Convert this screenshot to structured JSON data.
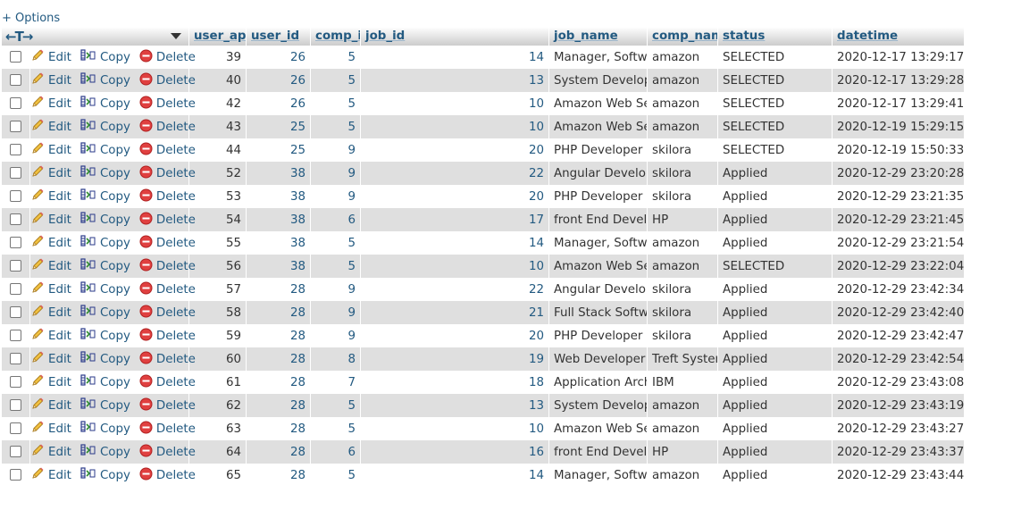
{
  "options_label": "+ Options",
  "header": {
    "nav_arrows": "←T→",
    "columns": [
      "user_applied_job_id",
      "user_id",
      "comp_id",
      "job_id",
      "job_name",
      "comp_name",
      "status",
      "datetime"
    ]
  },
  "actions": {
    "edit": "Edit",
    "copy": "Copy",
    "delete": "Delete"
  },
  "rows": [
    [
      "39",
      "26",
      "5",
      "14",
      "Manager, Software Development",
      "amazon",
      "SELECTED",
      "2020-12-17 13:29:17"
    ],
    [
      "40",
      "26",
      "5",
      "13",
      "System Development Engineer",
      "amazon",
      "SELECTED",
      "2020-12-17 13:29:28"
    ],
    [
      "42",
      "26",
      "5",
      "10",
      "Amazon Web Services (AWS)",
      "amazon",
      "SELECTED",
      "2020-12-17 13:29:41"
    ],
    [
      "43",
      "25",
      "5",
      "10",
      "Amazon Web Services (AWS)",
      "amazon",
      "SELECTED",
      "2020-12-19 15:29:15"
    ],
    [
      "44",
      "25",
      "9",
      "20",
      "PHP Developer - Web Applications",
      "skilora",
      "SELECTED",
      "2020-12-19 15:50:33"
    ],
    [
      "52",
      "38",
      "9",
      "22",
      "Angular Developer",
      "skilora",
      "Applied",
      "2020-12-29 23:20:28"
    ],
    [
      "53",
      "38",
      "9",
      "20",
      "PHP Developer - Web Applications",
      "skilora",
      "Applied",
      "2020-12-29 23:21:35"
    ],
    [
      "54",
      "38",
      "6",
      "17",
      "front End Developer ( React JS )",
      "HP",
      "Applied",
      "2020-12-29 23:21:45"
    ],
    [
      "55",
      "38",
      "5",
      "14",
      "Manager, Software Development",
      "amazon",
      "Applied",
      "2020-12-29 23:21:54"
    ],
    [
      "56",
      "38",
      "5",
      "10",
      "Amazon Web Services (AWS)",
      "amazon",
      "SELECTED",
      "2020-12-29 23:22:04"
    ],
    [
      "57",
      "28",
      "9",
      "22",
      "Angular Developer",
      "skilora",
      "Applied",
      "2020-12-29 23:42:34"
    ],
    [
      "58",
      "28",
      "9",
      "21",
      "Full Stack Software Developer",
      "skilora",
      "Applied",
      "2020-12-29 23:42:40"
    ],
    [
      "59",
      "28",
      "9",
      "20",
      "PHP Developer - Web Applications",
      "skilora",
      "Applied",
      "2020-12-29 23:42:47"
    ],
    [
      "60",
      "28",
      "8",
      "19",
      "Web Developer",
      "Treft Systems Inc",
      "Applied",
      "2020-12-29 23:42:54"
    ],
    [
      "61",
      "28",
      "7",
      "18",
      "Application Architect - Java",
      "IBM",
      "Applied",
      "2020-12-29 23:43:08"
    ],
    [
      "62",
      "28",
      "5",
      "13",
      "System Development Engineer",
      "amazon",
      "Applied",
      "2020-12-29 23:43:19"
    ],
    [
      "63",
      "28",
      "5",
      "10",
      "Amazon Web Services (AWS)",
      "amazon",
      "Applied",
      "2020-12-29 23:43:27"
    ],
    [
      "64",
      "28",
      "6",
      "16",
      "front End Developer ( Angular )",
      "HP",
      "Applied",
      "2020-12-29 23:43:37"
    ],
    [
      "65",
      "28",
      "5",
      "14",
      "Manager, Software Development",
      "amazon",
      "Applied",
      "2020-12-29 23:43:44"
    ]
  ]
}
